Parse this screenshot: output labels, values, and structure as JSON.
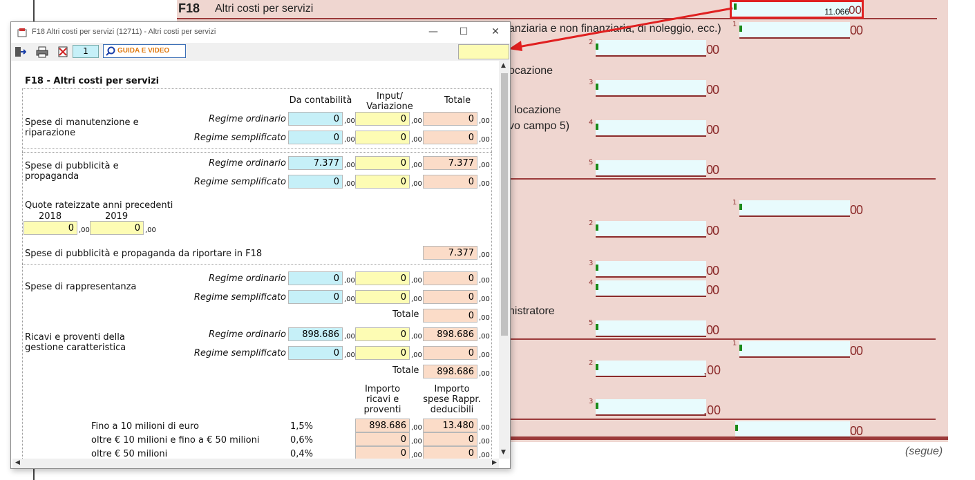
{
  "background_form": {
    "section_code": "F18",
    "section_title": "Altri costi per servizi",
    "total_value": "11.066",
    "line_texts": [
      "anziaria e non finanziaria, di noleggio, ecc.)",
      "ocazione",
      "i locazione",
      "vo campo 5)",
      "nistratore"
    ],
    "oo": "00",
    "comma_oo": ",00",
    "field_numbers": [
      "1",
      "2",
      "3",
      "4",
      "5",
      "1",
      "2",
      "3",
      "4",
      "5",
      "1",
      "2",
      "3"
    ],
    "segue": "(segue)"
  },
  "dialog": {
    "title": "F18 Altri costi per servizi (12711) - Altri costi per servizi",
    "toolbar": {
      "page_number": "1",
      "guide_label": "GUIDA E VIDEO"
    },
    "section_heading": "F18 - Altri costi per servizi",
    "columns": {
      "da_contabilita": "Da contabilità",
      "input_variazione": "Input/\nVariazione",
      "totale": "Totale"
    },
    "cents_label": ",00",
    "regime_ordinario": "Regime ordinario",
    "regime_semplificato": "Regime semplificato",
    "manutenzione": {
      "label": "Spese di manutenzione e riparazione",
      "ord": [
        "0",
        "0",
        "0"
      ],
      "sem": [
        "0",
        "0",
        "0"
      ]
    },
    "pubblicita": {
      "label": "Spese di pubblicità e propaganda",
      "ord": [
        "7.377",
        "0",
        "7.377"
      ],
      "sem": [
        "0",
        "0",
        "0"
      ]
    },
    "quote": {
      "label": "Quote rateizzate anni precedenti",
      "year1": "2018",
      "year2": "2019",
      "val1": "0",
      "val2": "0"
    },
    "pubblicita_f18": {
      "label": "Spese di pubblicità e propaganda da riportare in F18",
      "value": "7.377"
    },
    "rappresentanza": {
      "label": "Spese di rappresentanza",
      "ord": [
        "0",
        "0",
        "0"
      ],
      "sem": [
        "0",
        "0",
        "0"
      ],
      "totale_label": "Totale",
      "totale": "0"
    },
    "ricavi": {
      "label": "Ricavi e proventi della gestione caratteristica",
      "ord": [
        "898.686",
        "0",
        "898.686"
      ],
      "sem": [
        "0",
        "0",
        "0"
      ],
      "totale_label": "Totale",
      "totale": "898.686"
    },
    "scaglioni": {
      "col1": "Importo\nricavi e\nproventi",
      "col2": "Importo\nspese Rappr.\ndeducibili",
      "rows": [
        {
          "label": "Fino a 10 milioni di euro",
          "pct": "1,5%",
          "ricavi": "898.686",
          "spese": "13.480"
        },
        {
          "label": "oltre € 10 milioni e fino a € 50 milioni",
          "pct": "0,6%",
          "ricavi": "0",
          "spese": "0"
        },
        {
          "label": "oltre € 50 milioni",
          "pct": "0,4%",
          "ricavi": "0",
          "spese": "0"
        }
      ]
    }
  },
  "colors": {
    "bg_form": "#efd6d0",
    "accent_red": "#e02020",
    "field_blue": "#c6f0f8",
    "field_yellow": "#fdfcb4",
    "field_pink": "#fbdcc8"
  }
}
